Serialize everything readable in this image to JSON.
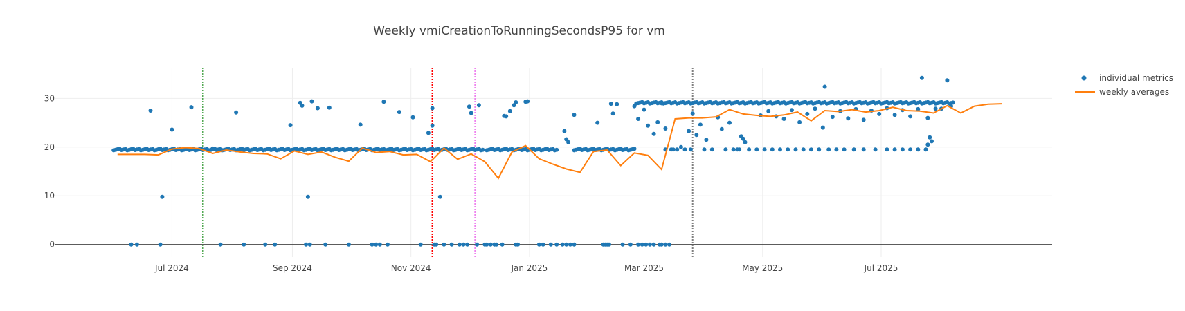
{
  "chart_data": {
    "type": "scatter",
    "title": "Weekly vmiCreationToRunningSecondsP95 for vm",
    "xlabel": "",
    "ylabel": "",
    "x_ticks": [
      "Jul 2024",
      "Sep 2024",
      "Nov 2024",
      "Jan 2025",
      "Mar 2025",
      "May 2025",
      "Jul 2025"
    ],
    "x_tick_dates": [
      "2024-07-01",
      "2024-09-01",
      "2024-11-01",
      "2025-01-01",
      "2025-03-01",
      "2025-05-01",
      "2025-07-01"
    ],
    "y_ticks": [
      0,
      10,
      20,
      30
    ],
    "xlim": [
      "2024-05-02",
      "2025-09-27"
    ],
    "ylim": [
      -2.6,
      36.3
    ],
    "grid": true,
    "legend": "top-right",
    "series": [
      {
        "name": "individual metrics",
        "mode": "markers",
        "color": "#1f77b4",
        "bands": [
          {
            "start": "2024-06-01",
            "end": "2024-12-08",
            "value": 19.5
          },
          {
            "start": "2024-12-10",
            "end": "2025-01-15",
            "value": 19.5
          },
          {
            "start": "2025-01-24",
            "end": "2025-02-24",
            "value": 19.5
          },
          {
            "start": "2025-02-25",
            "end": "2025-08-07",
            "value": 29.1
          }
        ],
        "points": [
          [
            "2024-06-10",
            0
          ],
          [
            "2024-06-13",
            0
          ],
          [
            "2024-06-25",
            0
          ],
          [
            "2024-06-20",
            27.5
          ],
          [
            "2024-06-26",
            9.8
          ],
          [
            "2024-07-01",
            23.6
          ],
          [
            "2024-07-11",
            28.2
          ],
          [
            "2024-07-22",
            19.7
          ],
          [
            "2024-07-26",
            0
          ],
          [
            "2024-08-07",
            0
          ],
          [
            "2024-08-03",
            27.1
          ],
          [
            "2024-08-18",
            0
          ],
          [
            "2024-08-23",
            0
          ],
          [
            "2024-08-31",
            24.5
          ],
          [
            "2024-09-05",
            29.1
          ],
          [
            "2024-09-06",
            28.5
          ],
          [
            "2024-09-11",
            29.4
          ],
          [
            "2024-09-14",
            28.0
          ],
          [
            "2024-09-09",
            9.8
          ],
          [
            "2024-09-08",
            0
          ],
          [
            "2024-09-10",
            0
          ],
          [
            "2024-09-18",
            0
          ],
          [
            "2024-09-20",
            28.1
          ],
          [
            "2024-09-30",
            0
          ],
          [
            "2024-10-06",
            24.6
          ],
          [
            "2024-10-12",
            0
          ],
          [
            "2024-10-14",
            0
          ],
          [
            "2024-10-16",
            0
          ],
          [
            "2024-10-18",
            29.3
          ],
          [
            "2024-10-20",
            0
          ],
          [
            "2024-10-26",
            27.2
          ],
          [
            "2024-11-02",
            26.1
          ],
          [
            "2024-11-06",
            0
          ],
          [
            "2024-11-10",
            22.9
          ],
          [
            "2024-11-12",
            28.0
          ],
          [
            "2024-11-18",
            0
          ],
          [
            "2024-11-22",
            0
          ],
          [
            "2024-11-28",
            0
          ],
          [
            "2024-12-02",
            27.0
          ],
          [
            "2024-12-06",
            28.6
          ],
          [
            "2024-12-09",
            0
          ],
          [
            "2024-12-15",
            0
          ],
          [
            "2024-12-18",
            0
          ],
          [
            "2024-12-20",
            26.3
          ],
          [
            "2024-12-22",
            27.4
          ],
          [
            "2024-12-25",
            0
          ],
          [
            "2024-12-26",
            0
          ],
          [
            "2024-11-12",
            24.4
          ],
          [
            "2024-11-13",
            0
          ],
          [
            "2024-11-14",
            0
          ],
          [
            "2024-11-16",
            9.8
          ],
          [
            "2024-11-26",
            0
          ],
          [
            "2024-11-30",
            0
          ],
          [
            "2024-12-01",
            28.3
          ],
          [
            "2024-12-05",
            0
          ],
          [
            "2024-12-10",
            0
          ],
          [
            "2024-12-12",
            0
          ],
          [
            "2024-12-14",
            0
          ],
          [
            "2024-12-19",
            26.4
          ],
          [
            "2024-12-24",
            28.6
          ],
          [
            "2024-12-25",
            29.2
          ],
          [
            "2024-12-30",
            29.3
          ],
          [
            "2024-12-31",
            29.4
          ],
          [
            "2025-01-06",
            0
          ],
          [
            "2025-01-08",
            0
          ],
          [
            "2025-01-12",
            0
          ],
          [
            "2025-01-15",
            0
          ],
          [
            "2025-01-18",
            0
          ],
          [
            "2025-01-20",
            0
          ],
          [
            "2025-01-22",
            0
          ],
          [
            "2025-01-24",
            0
          ],
          [
            "2025-01-19",
            23.3
          ],
          [
            "2025-01-20",
            21.6
          ],
          [
            "2025-01-21",
            21.0
          ],
          [
            "2025-01-24",
            26.6
          ],
          [
            "2025-02-05",
            25.0
          ],
          [
            "2025-02-08",
            0
          ],
          [
            "2025-02-09",
            0
          ],
          [
            "2025-02-10",
            0
          ],
          [
            "2025-02-11",
            0
          ],
          [
            "2025-02-12",
            28.9
          ],
          [
            "2025-02-13",
            26.9
          ],
          [
            "2025-02-15",
            28.8
          ],
          [
            "2025-02-18",
            0
          ],
          [
            "2025-02-22",
            0
          ],
          [
            "2025-02-26",
            0
          ],
          [
            "2025-02-28",
            0
          ],
          [
            "2025-03-02",
            0
          ],
          [
            "2025-03-04",
            0
          ],
          [
            "2025-03-06",
            0
          ],
          [
            "2025-03-09",
            0
          ],
          [
            "2025-03-10",
            0
          ],
          [
            "2025-03-12",
            0
          ],
          [
            "2025-03-14",
            0
          ],
          [
            "2025-02-24",
            28.4
          ],
          [
            "2025-02-26",
            25.8
          ],
          [
            "2025-03-01",
            27.7
          ],
          [
            "2025-03-03",
            24.4
          ],
          [
            "2025-03-06",
            22.7
          ],
          [
            "2025-03-08",
            25.1
          ],
          [
            "2025-03-10",
            29.0
          ],
          [
            "2025-03-12",
            23.8
          ],
          [
            "2025-03-12",
            19.5
          ],
          [
            "2025-03-15",
            19.5
          ],
          [
            "2025-03-16",
            19.5
          ],
          [
            "2025-03-18",
            19.5
          ],
          [
            "2025-03-20",
            20.0
          ],
          [
            "2025-03-22",
            19.5
          ],
          [
            "2025-03-24",
            23.3
          ],
          [
            "2025-03-25",
            19.5
          ],
          [
            "2025-03-26",
            26.9
          ],
          [
            "2025-03-28",
            22.5
          ],
          [
            "2025-03-30",
            24.6
          ],
          [
            "2025-04-01",
            19.5
          ],
          [
            "2025-04-02",
            21.5
          ],
          [
            "2025-04-05",
            19.5
          ],
          [
            "2025-04-08",
            26.1
          ],
          [
            "2025-04-10",
            23.7
          ],
          [
            "2025-04-12",
            19.5
          ],
          [
            "2025-04-14",
            25.0
          ],
          [
            "2025-04-16",
            19.5
          ],
          [
            "2025-04-18",
            19.5
          ],
          [
            "2025-04-19",
            19.5
          ],
          [
            "2025-04-20",
            22.2
          ],
          [
            "2025-04-21",
            21.7
          ],
          [
            "2025-04-22",
            21.0
          ],
          [
            "2025-04-24",
            19.5
          ],
          [
            "2025-04-28",
            19.5
          ],
          [
            "2025-05-02",
            19.5
          ],
          [
            "2025-05-06",
            19.5
          ],
          [
            "2025-05-10",
            19.5
          ],
          [
            "2025-05-14",
            19.5
          ],
          [
            "2025-05-18",
            19.5
          ],
          [
            "2025-05-22",
            19.5
          ],
          [
            "2025-05-26",
            19.5
          ],
          [
            "2025-05-30",
            19.5
          ],
          [
            "2025-06-04",
            19.5
          ],
          [
            "2025-06-08",
            19.5
          ],
          [
            "2025-06-12",
            19.5
          ],
          [
            "2025-06-17",
            19.5
          ],
          [
            "2025-06-22",
            19.5
          ],
          [
            "2025-06-28",
            19.5
          ],
          [
            "2025-07-04",
            19.5
          ],
          [
            "2025-07-08",
            19.5
          ],
          [
            "2025-07-12",
            19.5
          ],
          [
            "2025-07-16",
            19.5
          ],
          [
            "2025-07-20",
            19.5
          ],
          [
            "2025-07-24",
            19.5
          ],
          [
            "2025-07-25",
            20.5
          ],
          [
            "2025-07-26",
            22.0
          ],
          [
            "2025-07-27",
            21.2
          ],
          [
            "2025-04-30",
            26.5
          ],
          [
            "2025-05-04",
            27.4
          ],
          [
            "2025-05-08",
            26.3
          ],
          [
            "2025-05-12",
            25.8
          ],
          [
            "2025-05-16",
            27.6
          ],
          [
            "2025-05-20",
            25.1
          ],
          [
            "2025-05-24",
            26.8
          ],
          [
            "2025-05-28",
            27.9
          ],
          [
            "2025-06-01",
            24.0
          ],
          [
            "2025-06-02",
            32.4
          ],
          [
            "2025-06-06",
            26.2
          ],
          [
            "2025-06-10",
            27.4
          ],
          [
            "2025-06-14",
            25.9
          ],
          [
            "2025-06-18",
            27.8
          ],
          [
            "2025-06-22",
            25.6
          ],
          [
            "2025-06-26",
            27.5
          ],
          [
            "2025-06-30",
            26.8
          ],
          [
            "2025-07-04",
            28.0
          ],
          [
            "2025-07-08",
            26.6
          ],
          [
            "2025-07-12",
            27.6
          ],
          [
            "2025-07-16",
            26.3
          ],
          [
            "2025-07-20",
            27.8
          ],
          [
            "2025-07-22",
            34.2
          ],
          [
            "2025-07-25",
            26.0
          ],
          [
            "2025-07-29",
            27.9
          ],
          [
            "2025-08-01",
            27.9
          ],
          [
            "2025-08-04",
            33.7
          ],
          [
            "2025-08-06",
            28.4
          ]
        ]
      },
      {
        "name": "weekly averages",
        "mode": "lines",
        "color": "#ff7f0e",
        "points": [
          [
            "2024-06-03",
            18.5
          ],
          [
            "2024-06-17",
            18.5
          ],
          [
            "2024-06-24",
            18.4
          ],
          [
            "2024-07-01",
            19.6
          ],
          [
            "2024-07-08",
            19.9
          ],
          [
            "2024-07-15",
            19.7
          ],
          [
            "2024-07-22",
            18.7
          ],
          [
            "2024-07-29",
            19.4
          ],
          [
            "2024-08-05",
            19.0
          ],
          [
            "2024-08-12",
            18.7
          ],
          [
            "2024-08-19",
            18.6
          ],
          [
            "2024-08-26",
            17.6
          ],
          [
            "2024-09-02",
            19.2
          ],
          [
            "2024-09-09",
            18.5
          ],
          [
            "2024-09-16",
            19.0
          ],
          [
            "2024-09-23",
            17.9
          ],
          [
            "2024-09-30",
            17.1
          ],
          [
            "2024-10-07",
            19.8
          ],
          [
            "2024-10-14",
            18.9
          ],
          [
            "2024-10-21",
            19.1
          ],
          [
            "2024-10-28",
            18.4
          ],
          [
            "2024-11-04",
            18.5
          ],
          [
            "2024-11-11",
            17.0
          ],
          [
            "2024-11-18",
            19.8
          ],
          [
            "2024-11-25",
            17.5
          ],
          [
            "2024-12-02",
            18.6
          ],
          [
            "2024-12-09",
            17.0
          ],
          [
            "2024-12-16",
            13.6
          ],
          [
            "2024-12-23",
            19.0
          ],
          [
            "2024-12-30",
            20.3
          ],
          [
            "2025-01-06",
            17.6
          ],
          [
            "2025-01-13",
            16.5
          ],
          [
            "2025-01-20",
            15.5
          ],
          [
            "2025-01-27",
            14.8
          ],
          [
            "2025-02-03",
            19.1
          ],
          [
            "2025-02-10",
            19.4
          ],
          [
            "2025-02-17",
            16.2
          ],
          [
            "2025-02-24",
            18.8
          ],
          [
            "2025-03-03",
            18.3
          ],
          [
            "2025-03-10",
            15.4
          ],
          [
            "2025-03-17",
            25.8
          ],
          [
            "2025-03-24",
            26.0
          ],
          [
            "2025-03-31",
            26.0
          ],
          [
            "2025-04-07",
            26.2
          ],
          [
            "2025-04-14",
            27.7
          ],
          [
            "2025-04-21",
            26.8
          ],
          [
            "2025-04-28",
            26.5
          ],
          [
            "2025-05-05",
            26.3
          ],
          [
            "2025-05-12",
            26.6
          ],
          [
            "2025-05-19",
            27.2
          ],
          [
            "2025-05-26",
            25.4
          ],
          [
            "2025-06-02",
            27.5
          ],
          [
            "2025-06-09",
            27.3
          ],
          [
            "2025-06-16",
            27.7
          ],
          [
            "2025-06-23",
            27.2
          ],
          [
            "2025-06-30",
            27.5
          ],
          [
            "2025-07-07",
            28.2
          ],
          [
            "2025-07-14",
            27.5
          ],
          [
            "2025-07-21",
            27.4
          ],
          [
            "2025-07-28",
            27.0
          ],
          [
            "2025-08-04",
            28.5
          ],
          [
            "2025-08-11",
            27.0
          ],
          [
            "2025-08-18",
            28.4
          ],
          [
            "2025-08-25",
            28.8
          ],
          [
            "2025-09-01",
            28.9
          ]
        ]
      }
    ],
    "vertical_lines": [
      {
        "date": "2024-07-17",
        "color": "#008000",
        "style": "dotted"
      },
      {
        "date": "2024-11-12",
        "color": "#ff0000",
        "style": "dotted"
      },
      {
        "date": "2024-12-04",
        "color": "#ee82ee",
        "style": "dotted"
      },
      {
        "date": "2025-03-26",
        "color": "#808080",
        "style": "dotted"
      }
    ]
  }
}
